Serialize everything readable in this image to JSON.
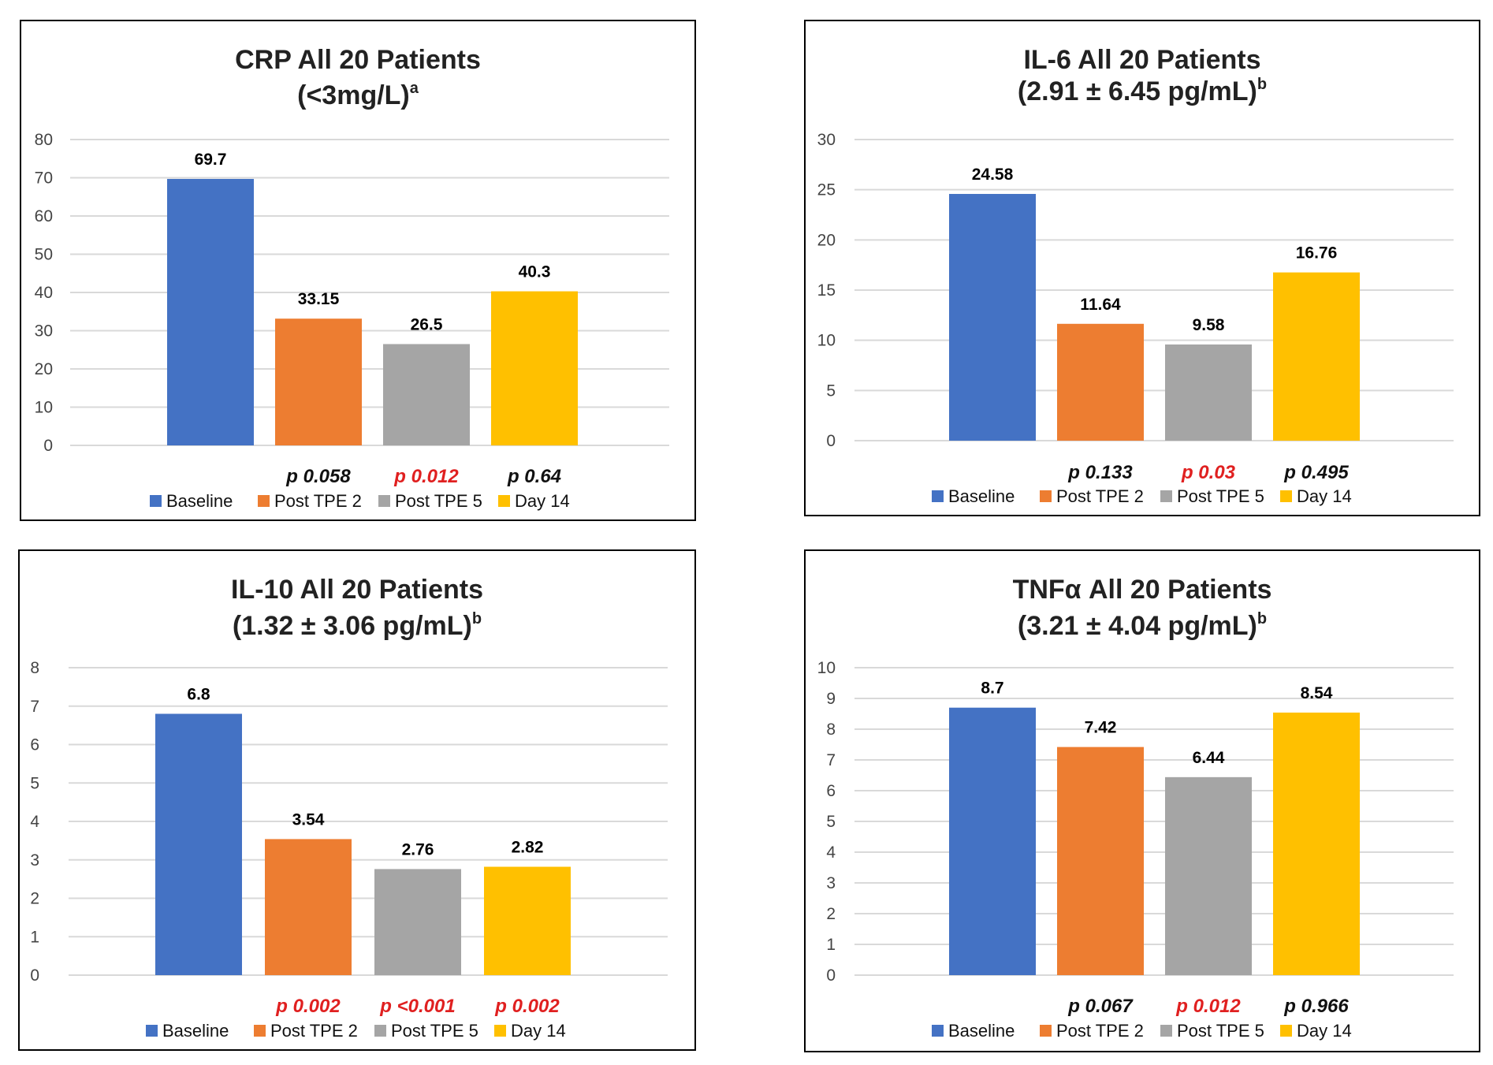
{
  "colors": {
    "baseline": "#4472C4",
    "post_tpe_2": "#ED7D31",
    "post_tpe_5": "#A5A5A5",
    "day_14": "#FFC000",
    "p_significant": "#E02020",
    "p_nonsignificant": "#111111"
  },
  "legend": [
    "Baseline",
    "Post TPE 2",
    "Post TPE 5",
    "Day 14"
  ],
  "chart_data": [
    {
      "type": "bar",
      "title_line1": "CRP All 20 Patients",
      "title_line2": "(<3mg/L)",
      "title_sup": "a",
      "categories": [
        "Baseline",
        "Post TPE 2",
        "Post TPE 5",
        "Day 14"
      ],
      "values": [
        69.7,
        33.15,
        26.5,
        40.3
      ],
      "value_labels": [
        "69.7",
        "33.15",
        "26.5",
        "40.3"
      ],
      "ylim": [
        0,
        80
      ],
      "yticks": [
        "0",
        "10",
        "20",
        "30",
        "40",
        "50",
        "60",
        "70",
        "80"
      ],
      "p_values": [
        null,
        "p 0.058",
        "p 0.012",
        "p 0.64"
      ],
      "p_significant": [
        false,
        false,
        true,
        false
      ],
      "grid": true,
      "legend_position": "bottom"
    },
    {
      "type": "bar",
      "title_line1": "IL-6 All 20 Patients",
      "title_line2": "(2.91 ± 6.45 pg/mL)",
      "title_sup": "b",
      "categories": [
        "Baseline",
        "Post TPE 2",
        "Post TPE 5",
        "Day 14"
      ],
      "values": [
        24.58,
        11.64,
        9.58,
        16.76
      ],
      "value_labels": [
        "24.58",
        "11.64",
        "9.58",
        "16.76"
      ],
      "ylim": [
        0,
        30
      ],
      "yticks": [
        "0",
        "5",
        "10",
        "15",
        "20",
        "25",
        "30"
      ],
      "p_values": [
        null,
        "p 0.133",
        "p 0.03",
        "p 0.495"
      ],
      "p_significant": [
        false,
        false,
        true,
        false
      ],
      "grid": true,
      "legend_position": "bottom"
    },
    {
      "type": "bar",
      "title_line1": "IL-10 All 20 Patients",
      "title_line2": "(1.32 ± 3.06 pg/mL)",
      "title_sup": "b",
      "categories": [
        "Baseline",
        "Post TPE 2",
        "Post TPE 5",
        "Day 14"
      ],
      "values": [
        6.8,
        3.54,
        2.76,
        2.82
      ],
      "value_labels": [
        "6.8",
        "3.54",
        "2.76",
        "2.82"
      ],
      "ylim": [
        0,
        8
      ],
      "yticks": [
        "0",
        "1",
        "2",
        "3",
        "4",
        "5",
        "6",
        "7",
        "8"
      ],
      "p_values": [
        null,
        "p 0.002",
        "p <0.001",
        "p 0.002"
      ],
      "p_significant": [
        false,
        true,
        true,
        true
      ],
      "grid": true,
      "legend_position": "bottom"
    },
    {
      "type": "bar",
      "title_line1": "TNFα All 20 Patients",
      "title_line2": "(3.21 ± 4.04 pg/mL)",
      "title_sup": "b",
      "categories": [
        "Baseline",
        "Post TPE 2",
        "Post TPE 5",
        "Day 14"
      ],
      "values": [
        8.7,
        7.42,
        6.44,
        8.54
      ],
      "value_labels": [
        "8.7",
        "7.42",
        "6.44",
        "8.54"
      ],
      "ylim": [
        0,
        10
      ],
      "yticks": [
        "0",
        "1",
        "2",
        "3",
        "4",
        "5",
        "6",
        "7",
        "8",
        "9",
        "10"
      ],
      "p_values": [
        null,
        "p 0.067",
        "p 0.012",
        "p 0.966"
      ],
      "p_significant": [
        false,
        false,
        true,
        false
      ],
      "grid": true,
      "legend_position": "bottom"
    }
  ]
}
